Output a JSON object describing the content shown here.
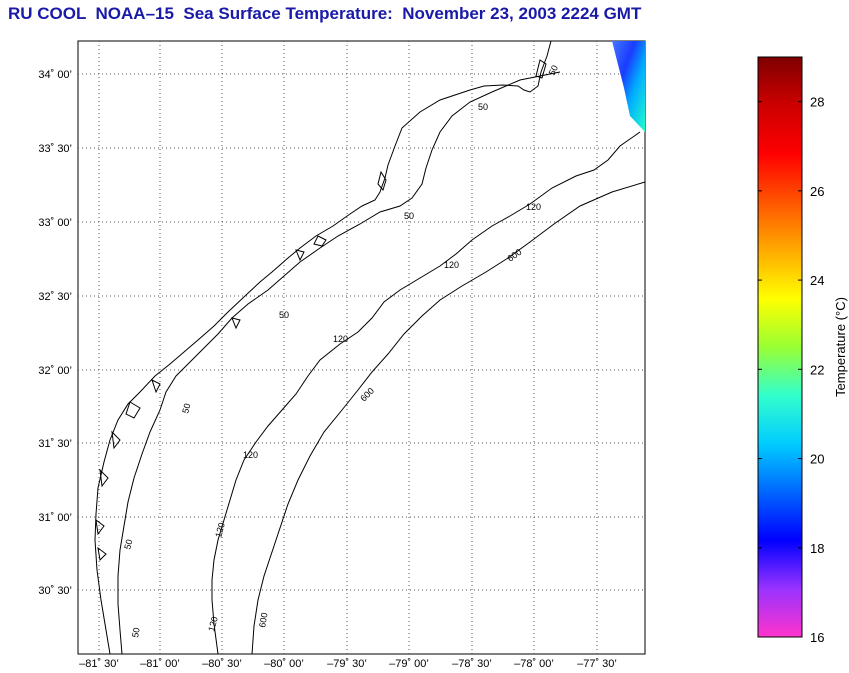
{
  "title": "RU COOL  NOAA–15  Sea Surface Temperature:  November 23, 2003 2224 GMT",
  "map": {
    "lat_labels": [
      "34˚ 00’",
      "33˚ 30’",
      "33˚ 00’",
      "32˚ 30’",
      "32˚ 00’",
      "31˚ 30’",
      "31˚ 00’",
      "30˚ 30’"
    ],
    "lon_labels": [
      "–81˚ 30’",
      "–81˚ 00’",
      "–80˚ 30’",
      "–80˚ 00’",
      "–79˚ 30’",
      "–79˚ 00’",
      "–78˚ 30’",
      "–78˚ 00’",
      "–77˚ 30’"
    ],
    "contour_labels": [
      {
        "text": "50",
        "id": "c50-a"
      },
      {
        "text": "50",
        "id": "c50-b"
      },
      {
        "text": "50",
        "id": "c50-c"
      },
      {
        "text": "50",
        "id": "c50-d"
      },
      {
        "text": "50",
        "id": "c50-e"
      },
      {
        "text": "50",
        "id": "c50-f"
      },
      {
        "text": "50",
        "id": "c50-g"
      },
      {
        "text": "120",
        "id": "c120-a"
      },
      {
        "text": "120",
        "id": "c120-b"
      },
      {
        "text": "120",
        "id": "c120-c"
      },
      {
        "text": "120",
        "id": "c120-d"
      },
      {
        "text": "120",
        "id": "c120-e"
      },
      {
        "text": "120",
        "id": "c120-f"
      },
      {
        "text": "600",
        "id": "c600-a"
      },
      {
        "text": "600",
        "id": "c600-b"
      },
      {
        "text": "600",
        "id": "c600-c"
      }
    ]
  },
  "colorbar": {
    "label": "Temperature (°C)",
    "ticks": [
      "16",
      "18",
      "20",
      "22",
      "24",
      "26",
      "28"
    ],
    "range": [
      16,
      29
    ],
    "colors": [
      "#ff33cc",
      "#9a33ff",
      "#0000ff",
      "#0066ff",
      "#00ccff",
      "#33ffcc",
      "#99ff33",
      "#ffff00",
      "#ffaa00",
      "#ff5500",
      "#ff0000",
      "#cc0000",
      "#800000"
    ]
  }
}
